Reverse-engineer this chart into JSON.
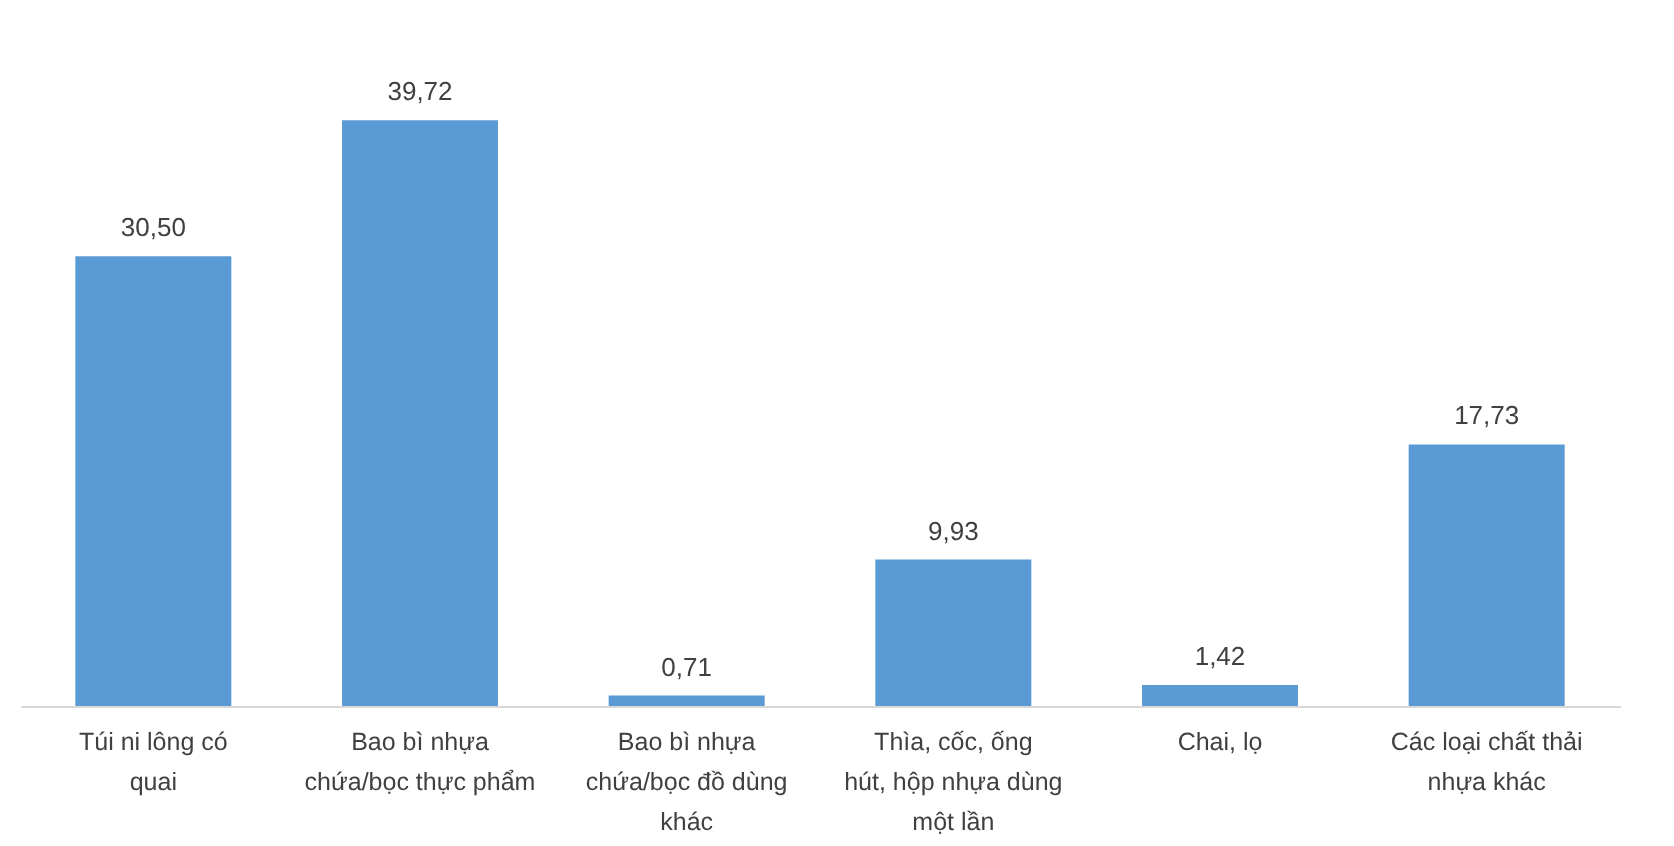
{
  "chart_data": {
    "type": "bar",
    "categories": [
      "Túi ni lông có quai",
      "Bao bì nhựa chứa/bọc thực phẩm",
      "Bao bì nhựa chứa/bọc đồ dùng khác",
      "Thìa, cốc, ống hút, hộp nhựa dùng một lần",
      "Chai, lọ",
      "Các loại chất thải nhựa khác"
    ],
    "values": [
      30.5,
      39.72,
      0.71,
      9.93,
      1.42,
      17.73
    ],
    "value_labels": [
      "30,50",
      "39,72",
      "0,71",
      "9,93",
      "1,42",
      "17,73"
    ],
    "color": "#5b9bd5",
    "grid": false
  }
}
